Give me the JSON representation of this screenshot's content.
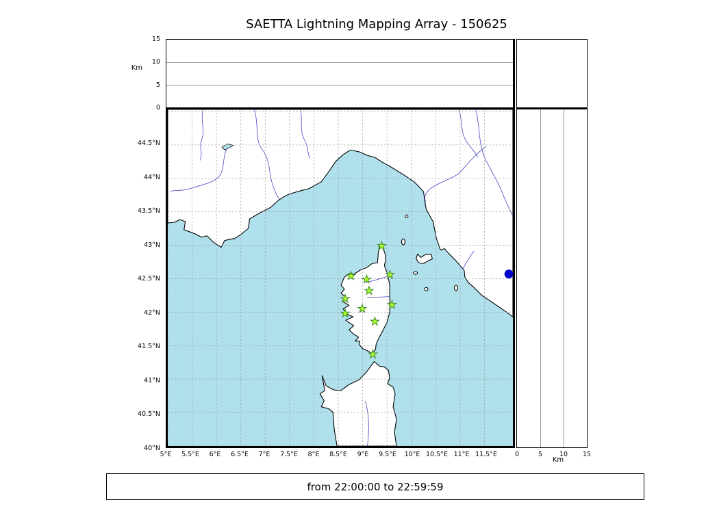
{
  "title": "SAETTA Lightning Mapping Array - 150625",
  "footer": {
    "text": "from 22:00:00 to 22:59:59"
  },
  "colors": {
    "sea": "#b0e0ec",
    "land": "#ffffff",
    "coastline": "#000000",
    "grid": "#999999",
    "river": "#5656c8",
    "station_fill": "#adff2f",
    "station_edge": "#3c8a28",
    "event_fill": "#0000cc"
  },
  "altitude_axis": {
    "label": "Km",
    "range": [
      0,
      15
    ],
    "ticks": [
      0,
      5,
      10,
      15
    ],
    "gridlines": [
      5,
      10
    ]
  },
  "map_axes": {
    "lon_range": [
      5,
      12.08
    ],
    "lat_range": [
      40,
      45.03
    ],
    "lon_ticks": [
      {
        "v": 5,
        "label": "5°E"
      },
      {
        "v": 5.5,
        "label": "5.5°E"
      },
      {
        "v": 6,
        "label": "6°E"
      },
      {
        "v": 6.5,
        "label": "6.5°E"
      },
      {
        "v": 7,
        "label": "7°E"
      },
      {
        "v": 7.5,
        "label": "7.5°E"
      },
      {
        "v": 8,
        "label": "8°E"
      },
      {
        "v": 8.5,
        "label": "8.5°E"
      },
      {
        "v": 9,
        "label": "9°E"
      },
      {
        "v": 9.5,
        "label": "9.5°E"
      },
      {
        "v": 10,
        "label": "10°E"
      },
      {
        "v": 10.5,
        "label": "10.5°E"
      },
      {
        "v": 11,
        "label": "11°E"
      },
      {
        "v": 11.5,
        "label": "11.5°E"
      }
    ],
    "lat_ticks": [
      {
        "v": 40,
        "label": "40°N"
      },
      {
        "v": 40.5,
        "label": "40.5°N"
      },
      {
        "v": 41,
        "label": "41°N"
      },
      {
        "v": 41.5,
        "label": "41.5°N"
      },
      {
        "v": 42,
        "label": "42°N"
      },
      {
        "v": 42.5,
        "label": "42.5°N"
      },
      {
        "v": 43,
        "label": "43°N"
      },
      {
        "v": 43.5,
        "label": "43.5°N"
      },
      {
        "v": 44,
        "label": "44°N"
      },
      {
        "v": 44.5,
        "label": "44.5°N"
      }
    ],
    "lon_gridlines": [
      5,
      5.5,
      6,
      6.5,
      7,
      7.5,
      8,
      8.5,
      9,
      9.5,
      10,
      10.5,
      11,
      11.5
    ],
    "lat_gridlines": [
      40,
      40.5,
      41,
      41.5,
      42,
      42.5,
      43,
      43.5,
      44,
      44.5,
      45
    ]
  },
  "chart_data": {
    "type": "scatter",
    "title": "SAETTA Lightning Mapping Array - 150625",
    "time_window": "from 22:00:00 to 22:59:59",
    "layout": "XLMA-style: altitude-vs-longitude strip on top, geographic map in center, altitude-vs-latitude strip on right, altitude histogram box top-right",
    "top_panel": {
      "ylabel": "Km",
      "ylim": [
        0,
        15
      ],
      "yticks": [
        0,
        5,
        10,
        15
      ],
      "points": []
    },
    "right_panel": {
      "xlabel": "Km",
      "xlim": [
        0,
        15
      ],
      "xticks": [
        0,
        5,
        10,
        15
      ],
      "points": []
    },
    "map_panel": {
      "xlim": [
        5,
        12.08
      ],
      "ylim": [
        40,
        45.03
      ],
      "grid": "dashed 0.5-degree graticule",
      "geography": [
        "southern France coast",
        "Ligurian/Tuscan Italian coast",
        "Corsica",
        "northern Sardinia",
        "Elba and Tuscan islands"
      ]
    },
    "series": [
      {
        "name": "LMA stations (Corsica)",
        "marker": "star",
        "color": "#adff2f",
        "points_lon_lat": [
          [
            9.39,
            42.99
          ],
          [
            8.76,
            42.54
          ],
          [
            9.08,
            42.49
          ],
          [
            9.56,
            42.56
          ],
          [
            9.13,
            42.32
          ],
          [
            8.64,
            42.2
          ],
          [
            9.6,
            42.11
          ],
          [
            8.99,
            42.05
          ],
          [
            8.64,
            41.98
          ],
          [
            9.25,
            41.86
          ],
          [
            9.21,
            41.37
          ]
        ]
      },
      {
        "name": "blue marker (Italian coast)",
        "marker": "circle",
        "color": "#0000cc",
        "points_lon_lat": [
          [
            12.0,
            42.57
          ]
        ]
      }
    ]
  }
}
